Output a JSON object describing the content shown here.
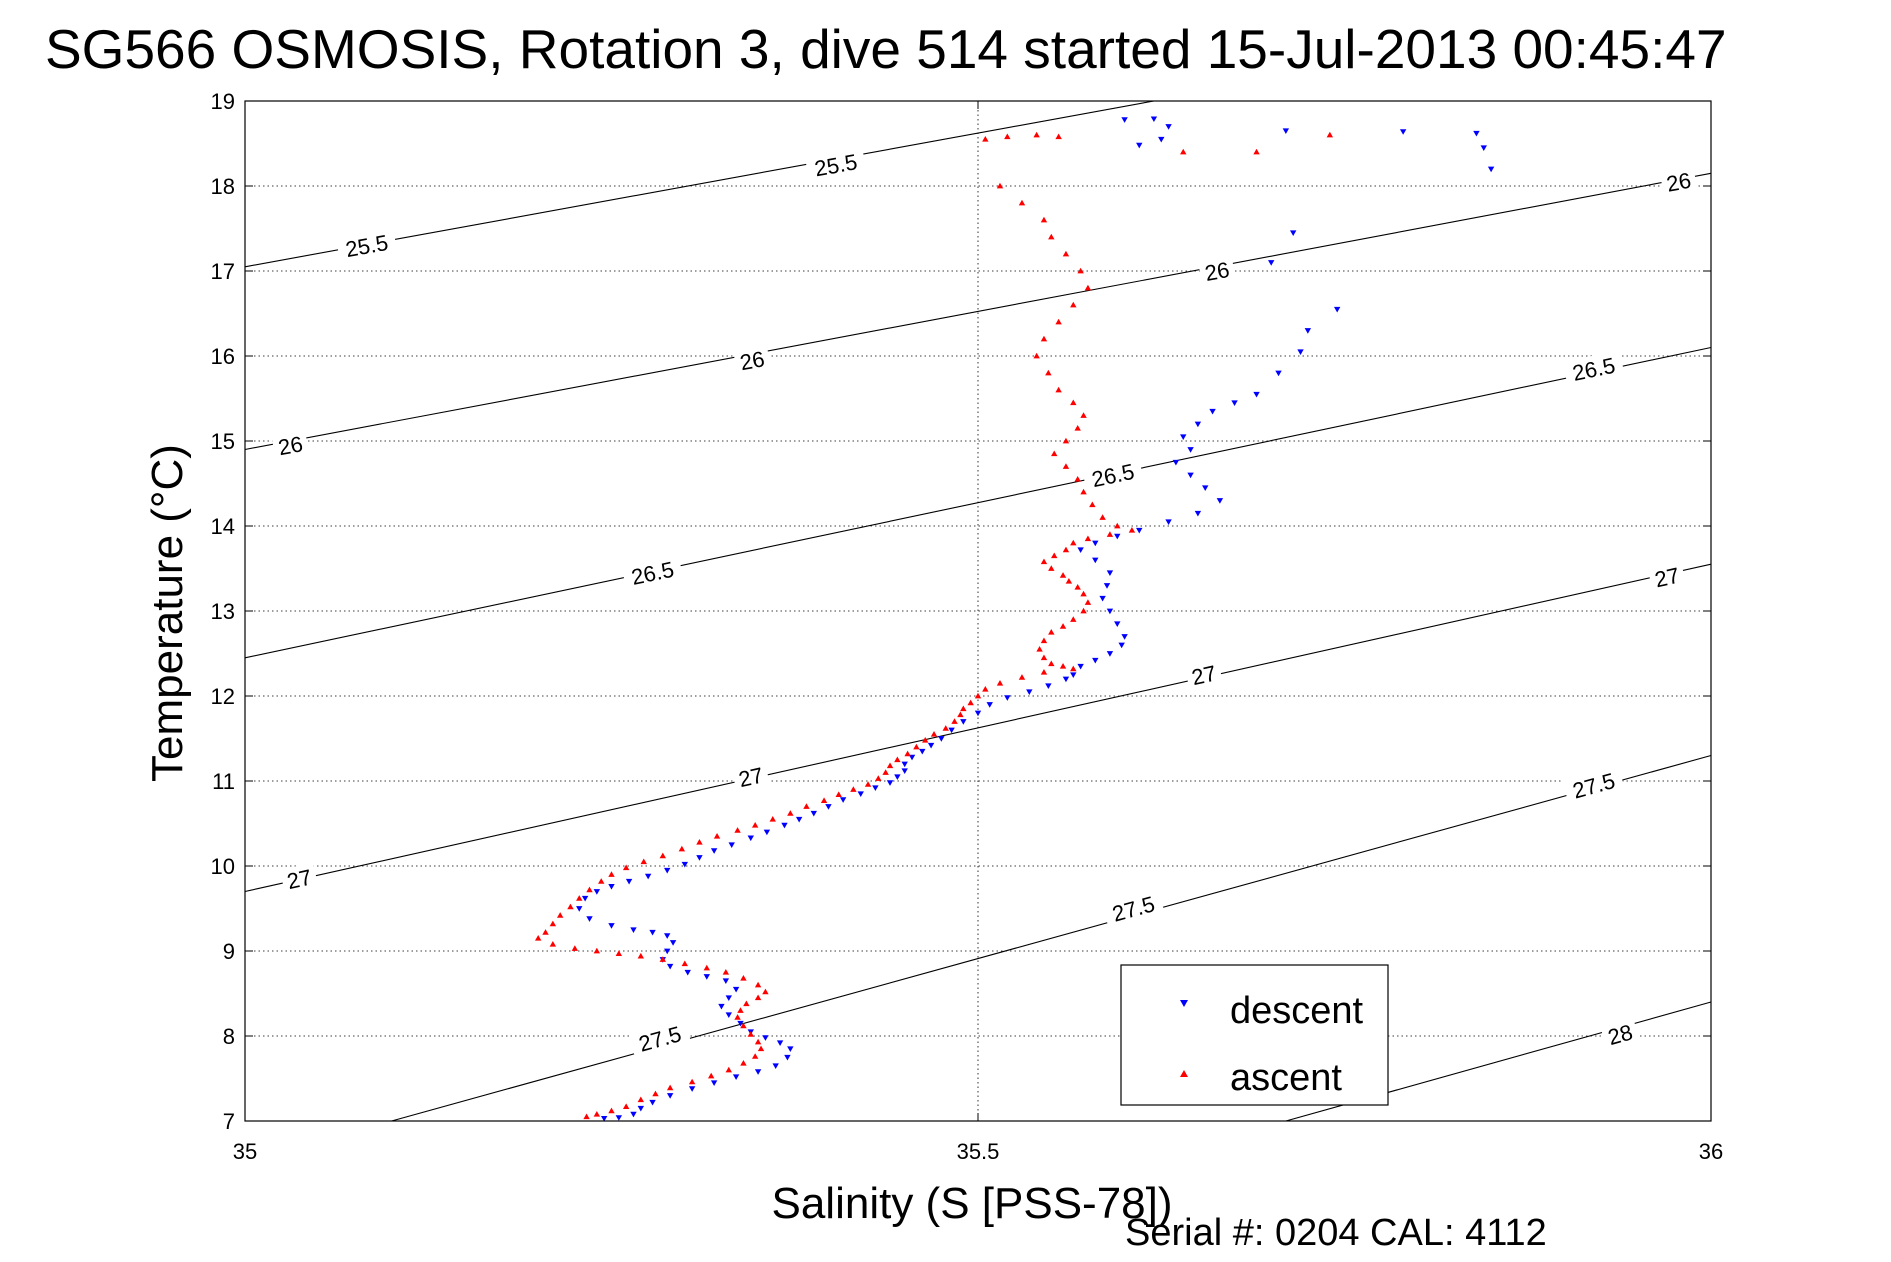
{
  "chart_data": {
    "type": "scatter",
    "title": "SG566 OSMOSIS, Rotation 3, dive 514 started 15-Jul-2013 00:45:47",
    "xlabel": "Salinity (S [PSS-78])",
    "ylabel": "Temperature (°C)",
    "xlim": [
      35,
      36
    ],
    "ylim": [
      7,
      19
    ],
    "x_ticks": [
      "35",
      "35.5",
      "36"
    ],
    "y_ticks": [
      "7",
      "8",
      "9",
      "10",
      "11",
      "12",
      "13",
      "14",
      "15",
      "16",
      "17",
      "18",
      "19"
    ],
    "grid": true,
    "legend_position": "bottom-right",
    "footer_text": "Serial #: 0204  CAL: 4112",
    "isopycnals": [
      {
        "label": "25.5",
        "points": [
          [
            35.0,
            17.05
          ],
          [
            35.62,
            19.0
          ]
        ]
      },
      {
        "label": "26",
        "points": [
          [
            35.0,
            14.9
          ],
          [
            36.0,
            18.15
          ]
        ]
      },
      {
        "label": "26.5",
        "points": [
          [
            35.0,
            12.45
          ],
          [
            36.0,
            16.1
          ]
        ]
      },
      {
        "label": "27",
        "points": [
          [
            35.0,
            9.7
          ],
          [
            36.0,
            13.55
          ]
        ]
      },
      {
        "label": "27.5",
        "points": [
          [
            35.1,
            7.0
          ],
          [
            36.0,
            11.3
          ]
        ]
      },
      {
        "label": "28",
        "points": [
          [
            35.71,
            7.0
          ],
          [
            36.0,
            8.4
          ]
        ]
      }
    ],
    "contour_labels": [
      {
        "text": "25.5",
        "x": 35.403,
        "y": 18.25
      },
      {
        "text": "25.5",
        "x": 35.083,
        "y": 17.3
      },
      {
        "text": "26",
        "x": 35.978,
        "y": 18.05
      },
      {
        "text": "26",
        "x": 35.663,
        "y": 17.0
      },
      {
        "text": "26",
        "x": 35.346,
        "y": 15.95
      },
      {
        "text": "26",
        "x": 35.031,
        "y": 14.95
      },
      {
        "text": "26.5",
        "x": 35.92,
        "y": 15.85
      },
      {
        "text": "26.5",
        "x": 35.592,
        "y": 14.6
      },
      {
        "text": "26.5",
        "x": 35.278,
        "y": 13.45
      },
      {
        "text": "27",
        "x": 35.97,
        "y": 13.4
      },
      {
        "text": "27",
        "x": 35.654,
        "y": 12.25
      },
      {
        "text": "27",
        "x": 35.345,
        "y": 11.05
      },
      {
        "text": "27",
        "x": 35.037,
        "y": 9.85
      },
      {
        "text": "27.5",
        "x": 35.92,
        "y": 10.95
      },
      {
        "text": "27.5",
        "x": 35.606,
        "y": 9.5
      },
      {
        "text": "27.5",
        "x": 35.283,
        "y": 7.97
      },
      {
        "text": "28",
        "x": 35.938,
        "y": 8.02
      }
    ],
    "series": [
      {
        "name": "descent",
        "color": "#0000ff",
        "marker": "triangle-down",
        "points": [
          [
            35.6,
            18.78
          ],
          [
            35.62,
            18.79
          ],
          [
            35.63,
            18.7
          ],
          [
            35.61,
            18.48
          ],
          [
            35.625,
            18.55
          ],
          [
            35.71,
            18.65
          ],
          [
            35.79,
            18.64
          ],
          [
            35.84,
            18.62
          ],
          [
            35.845,
            18.45
          ],
          [
            35.85,
            18.2
          ],
          [
            35.715,
            17.45
          ],
          [
            35.7,
            17.1
          ],
          [
            35.745,
            16.55
          ],
          [
            35.725,
            16.3
          ],
          [
            35.72,
            16.05
          ],
          [
            35.705,
            15.8
          ],
          [
            35.69,
            15.55
          ],
          [
            35.675,
            15.45
          ],
          [
            35.66,
            15.35
          ],
          [
            35.65,
            15.2
          ],
          [
            35.64,
            15.05
          ],
          [
            35.645,
            14.9
          ],
          [
            35.635,
            14.75
          ],
          [
            35.645,
            14.6
          ],
          [
            35.655,
            14.45
          ],
          [
            35.665,
            14.3
          ],
          [
            35.65,
            14.15
          ],
          [
            35.63,
            14.05
          ],
          [
            35.61,
            13.95
          ],
          [
            35.595,
            13.88
          ],
          [
            35.58,
            13.8
          ],
          [
            35.57,
            13.72
          ],
          [
            35.58,
            13.6
          ],
          [
            35.59,
            13.45
          ],
          [
            35.588,
            13.3
          ],
          [
            35.585,
            13.15
          ],
          [
            35.59,
            13.0
          ],
          [
            35.595,
            12.85
          ],
          [
            35.6,
            12.7
          ],
          [
            35.598,
            12.6
          ],
          [
            35.59,
            12.5
          ],
          [
            35.58,
            12.42
          ],
          [
            35.57,
            12.35
          ],
          [
            35.565,
            12.25
          ],
          [
            35.56,
            12.2
          ],
          [
            35.548,
            12.12
          ],
          [
            35.535,
            12.05
          ],
          [
            35.52,
            11.98
          ],
          [
            35.508,
            11.9
          ],
          [
            35.5,
            11.8
          ],
          [
            35.49,
            11.7
          ],
          [
            35.482,
            11.6
          ],
          [
            35.475,
            11.5
          ],
          [
            35.468,
            11.42
          ],
          [
            35.462,
            11.35
          ],
          [
            35.455,
            11.28
          ],
          [
            35.45,
            11.2
          ],
          [
            35.45,
            11.12
          ],
          [
            35.445,
            11.05
          ],
          [
            35.44,
            10.98
          ],
          [
            35.43,
            10.92
          ],
          [
            35.42,
            10.85
          ],
          [
            35.408,
            10.78
          ],
          [
            35.398,
            10.7
          ],
          [
            35.388,
            10.62
          ],
          [
            35.378,
            10.55
          ],
          [
            35.368,
            10.48
          ],
          [
            35.356,
            10.4
          ],
          [
            35.345,
            10.33
          ],
          [
            35.332,
            10.25
          ],
          [
            35.32,
            10.18
          ],
          [
            35.31,
            10.1
          ],
          [
            35.3,
            10.02
          ],
          [
            35.288,
            9.95
          ],
          [
            35.275,
            9.88
          ],
          [
            35.262,
            9.82
          ],
          [
            35.25,
            9.76
          ],
          [
            35.24,
            9.7
          ],
          [
            35.232,
            9.62
          ],
          [
            35.228,
            9.5
          ],
          [
            35.235,
            9.38
          ],
          [
            35.25,
            9.3
          ],
          [
            35.265,
            9.25
          ],
          [
            35.278,
            9.22
          ],
          [
            35.288,
            9.18
          ],
          [
            35.292,
            9.1
          ],
          [
            35.288,
            9.0
          ],
          [
            35.285,
            8.9
          ],
          [
            35.29,
            8.82
          ],
          [
            35.302,
            8.75
          ],
          [
            35.315,
            8.7
          ],
          [
            35.328,
            8.65
          ],
          [
            35.335,
            8.55
          ],
          [
            35.33,
            8.45
          ],
          [
            35.325,
            8.35
          ],
          [
            35.33,
            8.25
          ],
          [
            35.338,
            8.15
          ],
          [
            35.345,
            8.05
          ],
          [
            35.355,
            7.98
          ],
          [
            35.365,
            7.92
          ],
          [
            35.372,
            7.85
          ],
          [
            35.37,
            7.75
          ],
          [
            35.362,
            7.65
          ],
          [
            35.35,
            7.58
          ],
          [
            35.335,
            7.52
          ],
          [
            35.32,
            7.45
          ],
          [
            35.305,
            7.38
          ],
          [
            35.29,
            7.3
          ],
          [
            35.278,
            7.22
          ],
          [
            35.27,
            7.15
          ],
          [
            35.265,
            7.08
          ],
          [
            35.255,
            7.04
          ],
          [
            35.245,
            7.03
          ]
        ]
      },
      {
        "name": "ascent",
        "color": "#ff0000",
        "marker": "triangle-up",
        "points": [
          [
            35.505,
            18.55
          ],
          [
            35.52,
            18.58
          ],
          [
            35.54,
            18.6
          ],
          [
            35.555,
            18.58
          ],
          [
            35.64,
            18.4
          ],
          [
            35.69,
            18.4
          ],
          [
            35.74,
            18.6
          ],
          [
            35.515,
            18.0
          ],
          [
            35.53,
            17.8
          ],
          [
            35.545,
            17.6
          ],
          [
            35.55,
            17.4
          ],
          [
            35.56,
            17.2
          ],
          [
            35.57,
            17.0
          ],
          [
            35.575,
            16.8
          ],
          [
            35.565,
            16.6
          ],
          [
            35.555,
            16.4
          ],
          [
            35.545,
            16.2
          ],
          [
            35.54,
            16.0
          ],
          [
            35.548,
            15.8
          ],
          [
            35.555,
            15.6
          ],
          [
            35.565,
            15.45
          ],
          [
            35.572,
            15.3
          ],
          [
            35.568,
            15.15
          ],
          [
            35.56,
            15.0
          ],
          [
            35.552,
            14.85
          ],
          [
            35.56,
            14.7
          ],
          [
            35.568,
            14.55
          ],
          [
            35.572,
            14.4
          ],
          [
            35.578,
            14.25
          ],
          [
            35.585,
            14.1
          ],
          [
            35.595,
            14.0
          ],
          [
            35.605,
            13.95
          ],
          [
            35.59,
            13.9
          ],
          [
            35.575,
            13.85
          ],
          [
            35.565,
            13.8
          ],
          [
            35.56,
            13.72
          ],
          [
            35.552,
            13.65
          ],
          [
            35.545,
            13.58
          ],
          [
            35.55,
            13.5
          ],
          [
            35.558,
            13.42
          ],
          [
            35.562,
            13.35
          ],
          [
            35.568,
            13.28
          ],
          [
            35.572,
            13.2
          ],
          [
            35.575,
            13.1
          ],
          [
            35.572,
            13.0
          ],
          [
            35.565,
            12.9
          ],
          [
            35.558,
            12.82
          ],
          [
            35.55,
            12.75
          ],
          [
            35.545,
            12.65
          ],
          [
            35.542,
            12.55
          ],
          [
            35.545,
            12.45
          ],
          [
            35.55,
            12.38
          ],
          [
            35.558,
            12.35
          ],
          [
            35.565,
            12.32
          ],
          [
            35.545,
            12.28
          ],
          [
            35.53,
            12.22
          ],
          [
            35.515,
            12.15
          ],
          [
            35.505,
            12.08
          ],
          [
            35.5,
            12.0
          ],
          [
            35.495,
            11.92
          ],
          [
            35.49,
            11.85
          ],
          [
            35.488,
            11.78
          ],
          [
            35.484,
            11.7
          ],
          [
            35.478,
            11.62
          ],
          [
            35.47,
            11.55
          ],
          [
            35.464,
            11.48
          ],
          [
            35.458,
            11.4
          ],
          [
            35.452,
            11.32
          ],
          [
            35.445,
            11.25
          ],
          [
            35.44,
            11.18
          ],
          [
            35.437,
            11.1
          ],
          [
            35.432,
            11.03
          ],
          [
            35.425,
            10.96
          ],
          [
            35.415,
            10.9
          ],
          [
            35.405,
            10.84
          ],
          [
            35.395,
            10.77
          ],
          [
            35.383,
            10.7
          ],
          [
            35.372,
            10.62
          ],
          [
            35.36,
            10.55
          ],
          [
            35.348,
            10.48
          ],
          [
            35.336,
            10.42
          ],
          [
            35.322,
            10.35
          ],
          [
            35.31,
            10.28
          ],
          [
            35.298,
            10.2
          ],
          [
            35.285,
            10.12
          ],
          [
            35.272,
            10.05
          ],
          [
            35.26,
            9.98
          ],
          [
            35.25,
            9.9
          ],
          [
            35.243,
            9.82
          ],
          [
            35.235,
            9.72
          ],
          [
            35.228,
            9.62
          ],
          [
            35.222,
            9.52
          ],
          [
            35.215,
            9.42
          ],
          [
            35.21,
            9.32
          ],
          [
            35.205,
            9.22
          ],
          [
            35.2,
            9.15
          ],
          [
            35.21,
            9.08
          ],
          [
            35.225,
            9.03
          ],
          [
            35.24,
            9.0
          ],
          [
            35.255,
            8.97
          ],
          [
            35.27,
            8.94
          ],
          [
            35.285,
            8.9
          ],
          [
            35.3,
            8.85
          ],
          [
            35.315,
            8.8
          ],
          [
            35.328,
            8.75
          ],
          [
            35.34,
            8.68
          ],
          [
            35.35,
            8.6
          ],
          [
            35.355,
            8.52
          ],
          [
            35.35,
            8.45
          ],
          [
            35.342,
            8.38
          ],
          [
            35.338,
            8.3
          ],
          [
            35.336,
            8.22
          ],
          [
            35.34,
            8.12
          ],
          [
            35.345,
            8.02
          ],
          [
            35.35,
            7.93
          ],
          [
            35.352,
            7.85
          ],
          [
            35.348,
            7.76
          ],
          [
            35.34,
            7.68
          ],
          [
            35.33,
            7.6
          ],
          [
            35.318,
            7.53
          ],
          [
            35.305,
            7.46
          ],
          [
            35.29,
            7.39
          ],
          [
            35.28,
            7.32
          ],
          [
            35.27,
            7.25
          ],
          [
            35.26,
            7.17
          ],
          [
            35.25,
            7.12
          ],
          [
            35.24,
            7.08
          ],
          [
            35.233,
            7.05
          ]
        ]
      }
    ]
  }
}
